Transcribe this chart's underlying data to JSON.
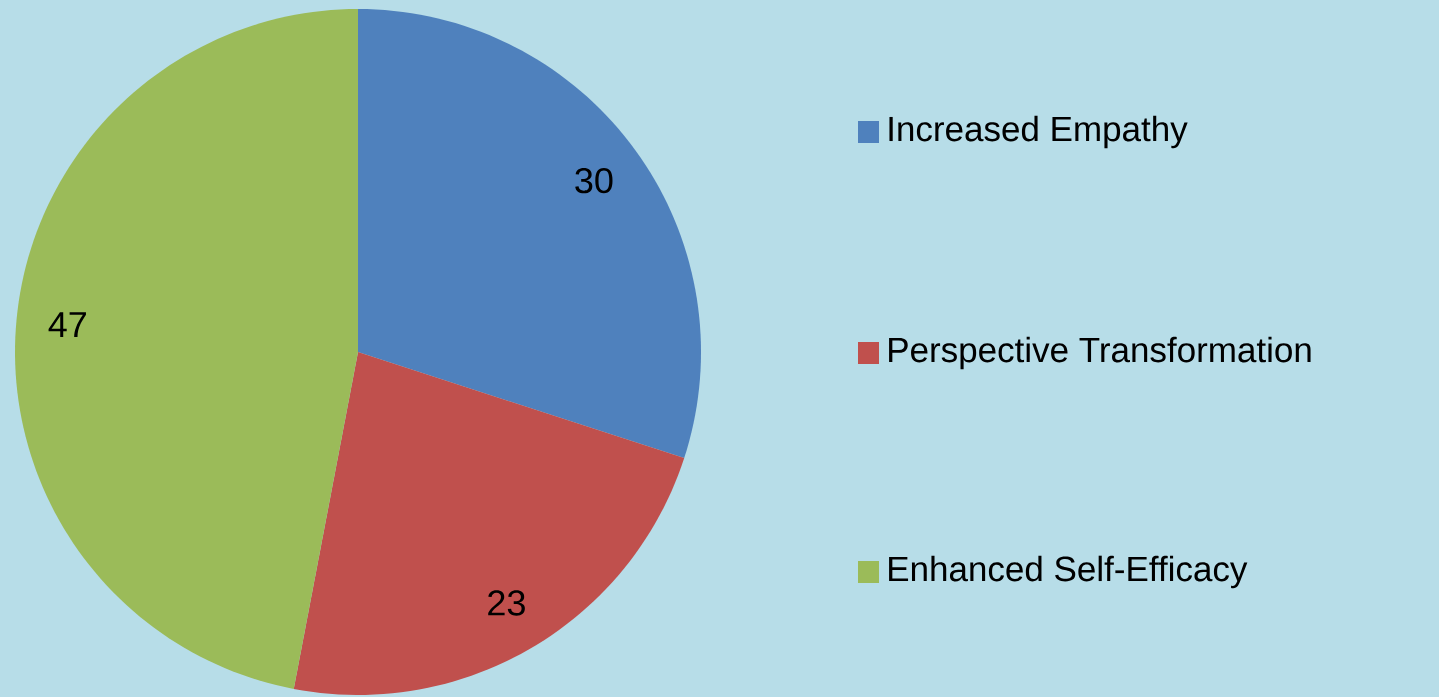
{
  "chart_data": {
    "type": "pie",
    "categories": [
      "Increased Empathy",
      "Perspective Transformation",
      "Enhanced Self-Efficacy"
    ],
    "values": [
      30,
      23,
      47
    ],
    "colors": [
      "#4f81bd",
      "#c0504d",
      "#9bbb59"
    ],
    "data_labels": true,
    "legend": "right"
  }
}
